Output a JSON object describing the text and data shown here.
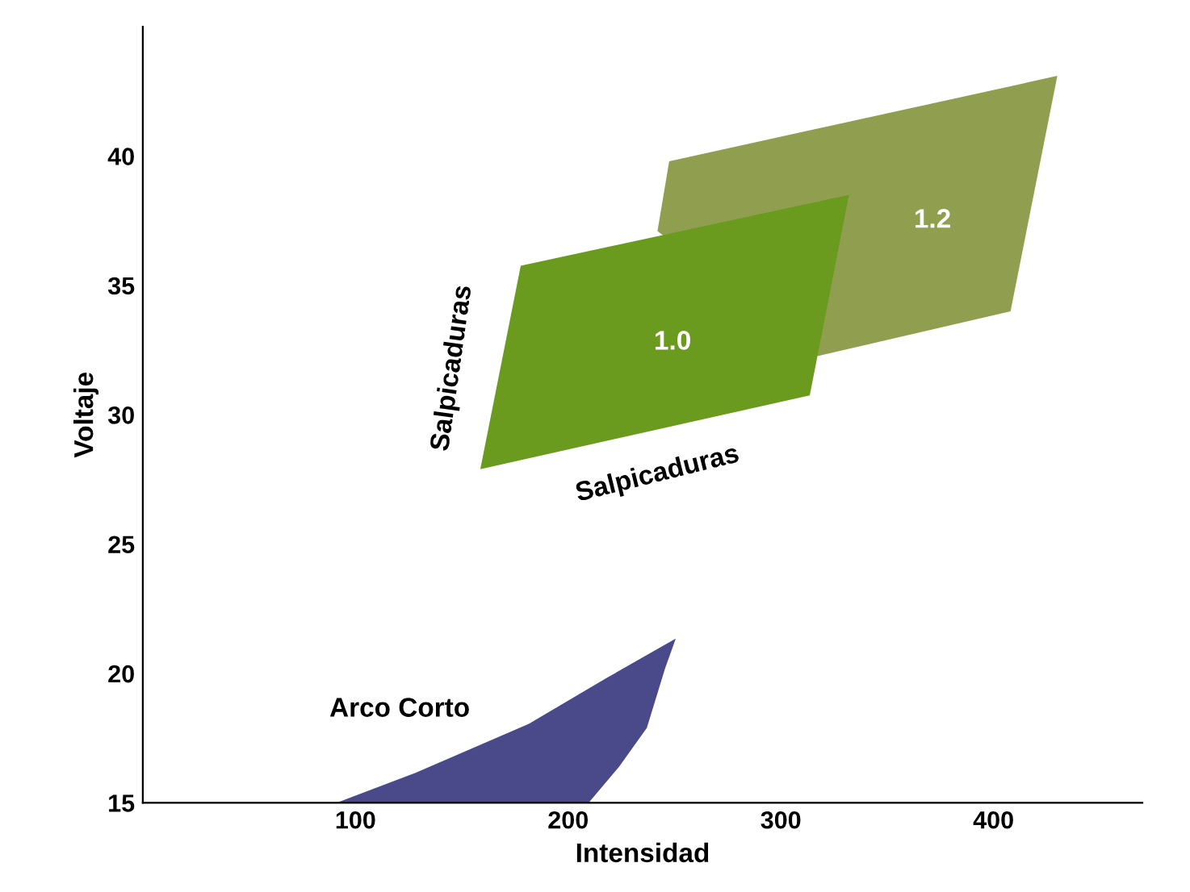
{
  "chart_data": {
    "type": "area",
    "xlabel": "Intensidad",
    "ylabel": "Voltaje",
    "xlim": [
      0,
      470
    ],
    "ylim": [
      15,
      45
    ],
    "xticks": [
      100,
      200,
      300,
      400
    ],
    "yticks": [
      15,
      20,
      25,
      30,
      35,
      40
    ],
    "grid": false,
    "legend": false,
    "series": [
      {
        "color": "#8f9f4f",
        "x": [
          247.5,
          430,
          408,
          317.4,
          242,
          247.5
        ],
        "values": [
          39.8,
          43.1,
          34.0,
          32.27,
          37.1,
          39.8
        ]
      },
      {
        "color": "#6a9a1e",
        "x": [
          177.7,
          332,
          313.6,
          158.7,
          177.7
        ],
        "values": [
          35.76,
          38.5,
          30.75,
          27.9,
          35.76
        ]
      },
      {
        "color": "#4a4a8a",
        "x": [
          91,
          128,
          181.5,
          217.5,
          250.6,
          245.6,
          237,
          224,
          209.6,
          91
        ],
        "values": [
          15,
          16.15,
          18.05,
          19.8,
          21.35,
          20.2,
          17.9,
          16.4,
          15,
          15
        ]
      }
    ],
    "annotations": [
      "1.2",
      "1.0",
      "Arco Corto",
      "Salpicaduras",
      "Salpicaduras"
    ]
  }
}
